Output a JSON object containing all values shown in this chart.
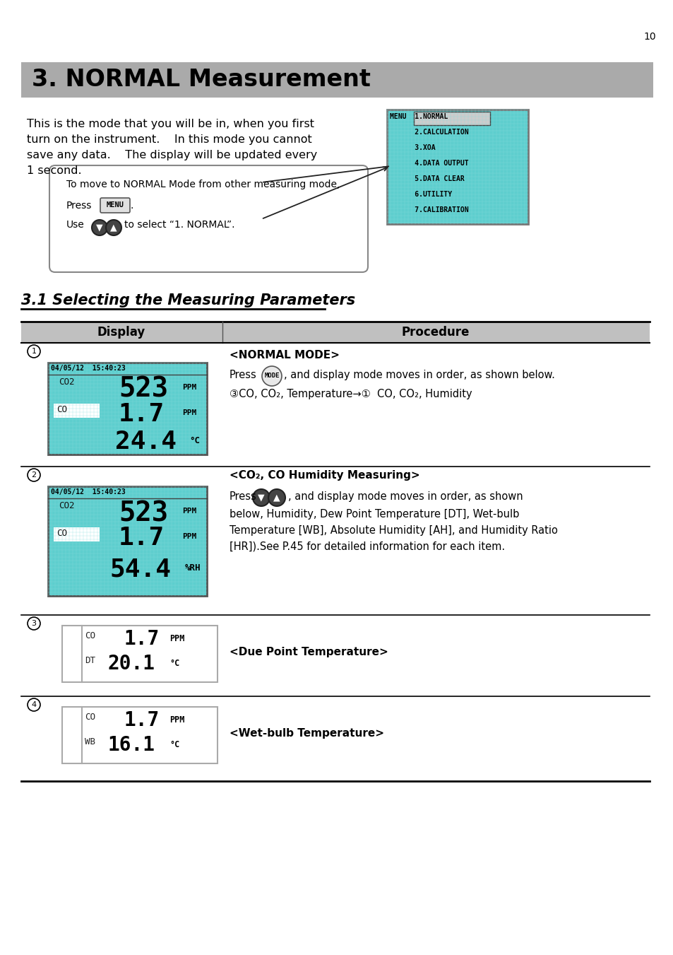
{
  "page_number": "10",
  "bg_color": "#ffffff",
  "section_title": "3. NORMAL Measurement",
  "section_title_bg": "#aaaaaa",
  "section_title_color": "#000000",
  "section_title_fontsize": 24,
  "body_fontsize": 11.5,
  "subsection_title": "3.1 Selecting the Measuring Parameters",
  "subsection_fontsize": 15,
  "table_header_bg": "#c0c0c0",
  "table_col1": "Display",
  "table_col2": "Procedure",
  "display_bg": "#5ecece",
  "menu_items": [
    "MENU  1.NORMAL",
    "      2.CALCULATION",
    "      3.XOA",
    "      4.DATA OUTPUT",
    "      5.DATA CLEAR",
    "      6.UTILITY",
    "      7.CALIBRATION"
  ]
}
